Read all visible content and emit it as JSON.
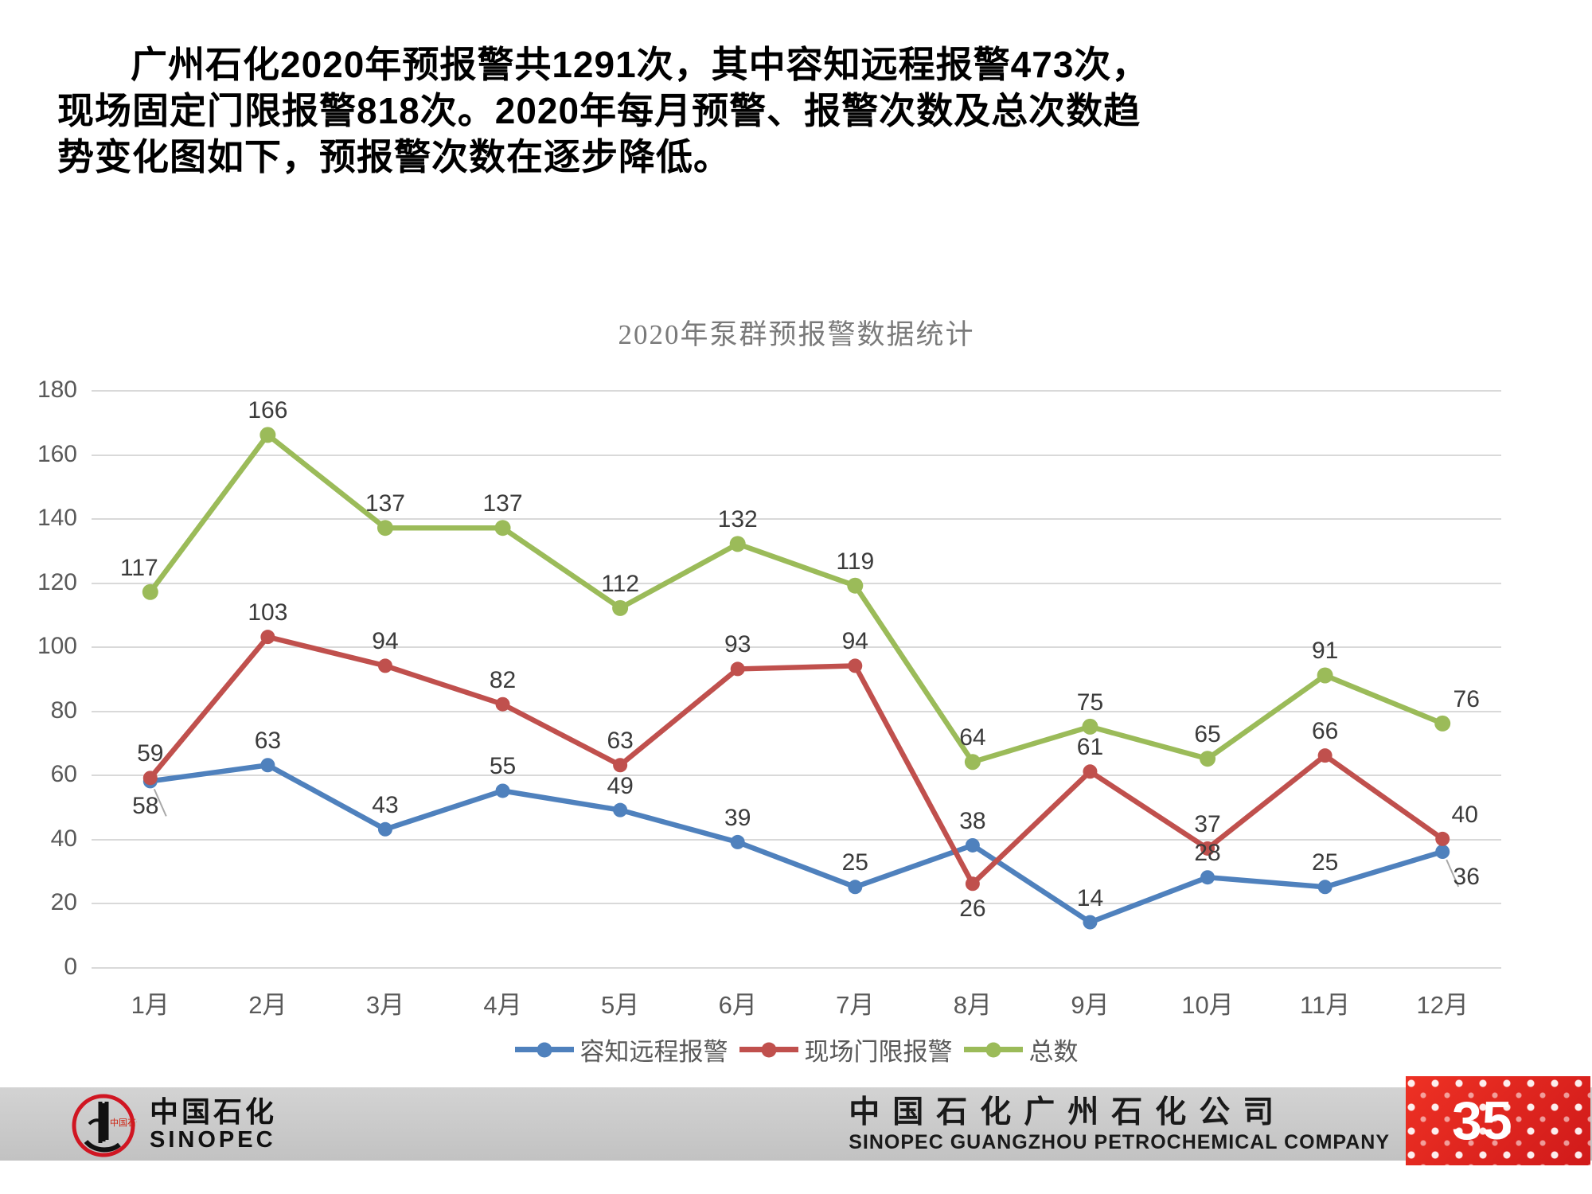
{
  "headline": {
    "text": "广州石化2020年预报警共1291次，其中容知远程报警473次，现场固定门限报警818次。2020年每月预警、报警次数及总次数趋势变化图如下，预报警次数在逐步降低。"
  },
  "chart_data": {
    "type": "line",
    "title": "2020年泵群预报警数据统计",
    "categories": [
      "1月",
      "2月",
      "3月",
      "4月",
      "5月",
      "6月",
      "7月",
      "8月",
      "9月",
      "10月",
      "11月",
      "12月"
    ],
    "series": [
      {
        "name": "容知远程报警",
        "color": "#4F81BD",
        "values": [
          58,
          63,
          43,
          55,
          49,
          39,
          25,
          38,
          14,
          28,
          25,
          36
        ]
      },
      {
        "name": "现场门限报警",
        "color": "#C0504D",
        "values": [
          59,
          103,
          94,
          82,
          63,
          93,
          94,
          26,
          61,
          37,
          66,
          40
        ]
      },
      {
        "name": "总数",
        "color": "#9BBB59",
        "values": [
          117,
          166,
          137,
          137,
          112,
          132,
          119,
          64,
          75,
          65,
          91,
          76
        ]
      }
    ],
    "ylim": [
      0,
      180
    ],
    "ytick_step": 20,
    "grid": true,
    "legend_position": "bottom",
    "gridline_color": "#d9d9d9",
    "label_color": "#3b3b3b",
    "axis_text_color": "#595959",
    "label_overrides": [
      {
        "s": 0,
        "i": 0,
        "pos": "below",
        "dx": -6,
        "leader": true
      },
      {
        "s": 0,
        "i": 11,
        "pos": "below",
        "dx": 30,
        "leader": true
      },
      {
        "s": 1,
        "i": 7,
        "pos": "below",
        "dx": 0
      },
      {
        "s": 1,
        "i": 11,
        "dx": 28
      },
      {
        "s": 2,
        "i": 11,
        "dx": 30
      },
      {
        "s": 2,
        "i": 0,
        "dx": -14
      }
    ]
  },
  "footer": {
    "logo_cn": "中国石化",
    "logo_en": "SINOPEC",
    "company_cn": "中国石化广州石化公司",
    "company_en": "SINOPEC GUANGZHOU  PETROCHEMICAL COMPANY",
    "page_number": "35"
  }
}
